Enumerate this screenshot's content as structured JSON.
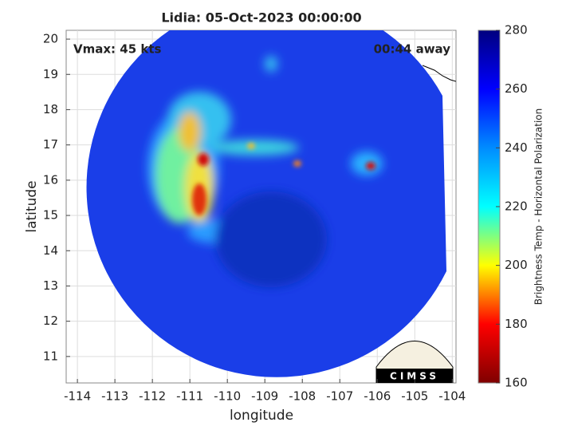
{
  "chart_data": {
    "type": "map",
    "title": "Lidia: 05-Oct-2023 00:00:00",
    "annotations": [
      "Vmax: 45 kts",
      "00:44 away"
    ],
    "xlabel": "longitude",
    "ylabel": "latitude",
    "xlim": [
      -114.3,
      -103.9
    ],
    "xticks": [
      -114,
      -113,
      -112,
      -111,
      -110,
      -109,
      -108,
      -107,
      -106,
      -105,
      -104
    ],
    "ylim": [
      10.25,
      20.25
    ],
    "yticks": [
      11,
      12,
      13,
      14,
      15,
      16,
      17,
      18,
      19,
      20
    ],
    "grid": true,
    "colorbar": {
      "label": "Brightness Temp - Horizontal Polarization",
      "lim": [
        160,
        280
      ],
      "ticks": [
        160,
        180,
        200,
        220,
        240,
        260,
        280
      ],
      "colors": [
        "#7f0000",
        "#ff0000",
        "#ffff00",
        "#00ffff",
        "#008cff",
        "#0000ff",
        "#00007f"
      ]
    },
    "logo": "CIMSS"
  }
}
